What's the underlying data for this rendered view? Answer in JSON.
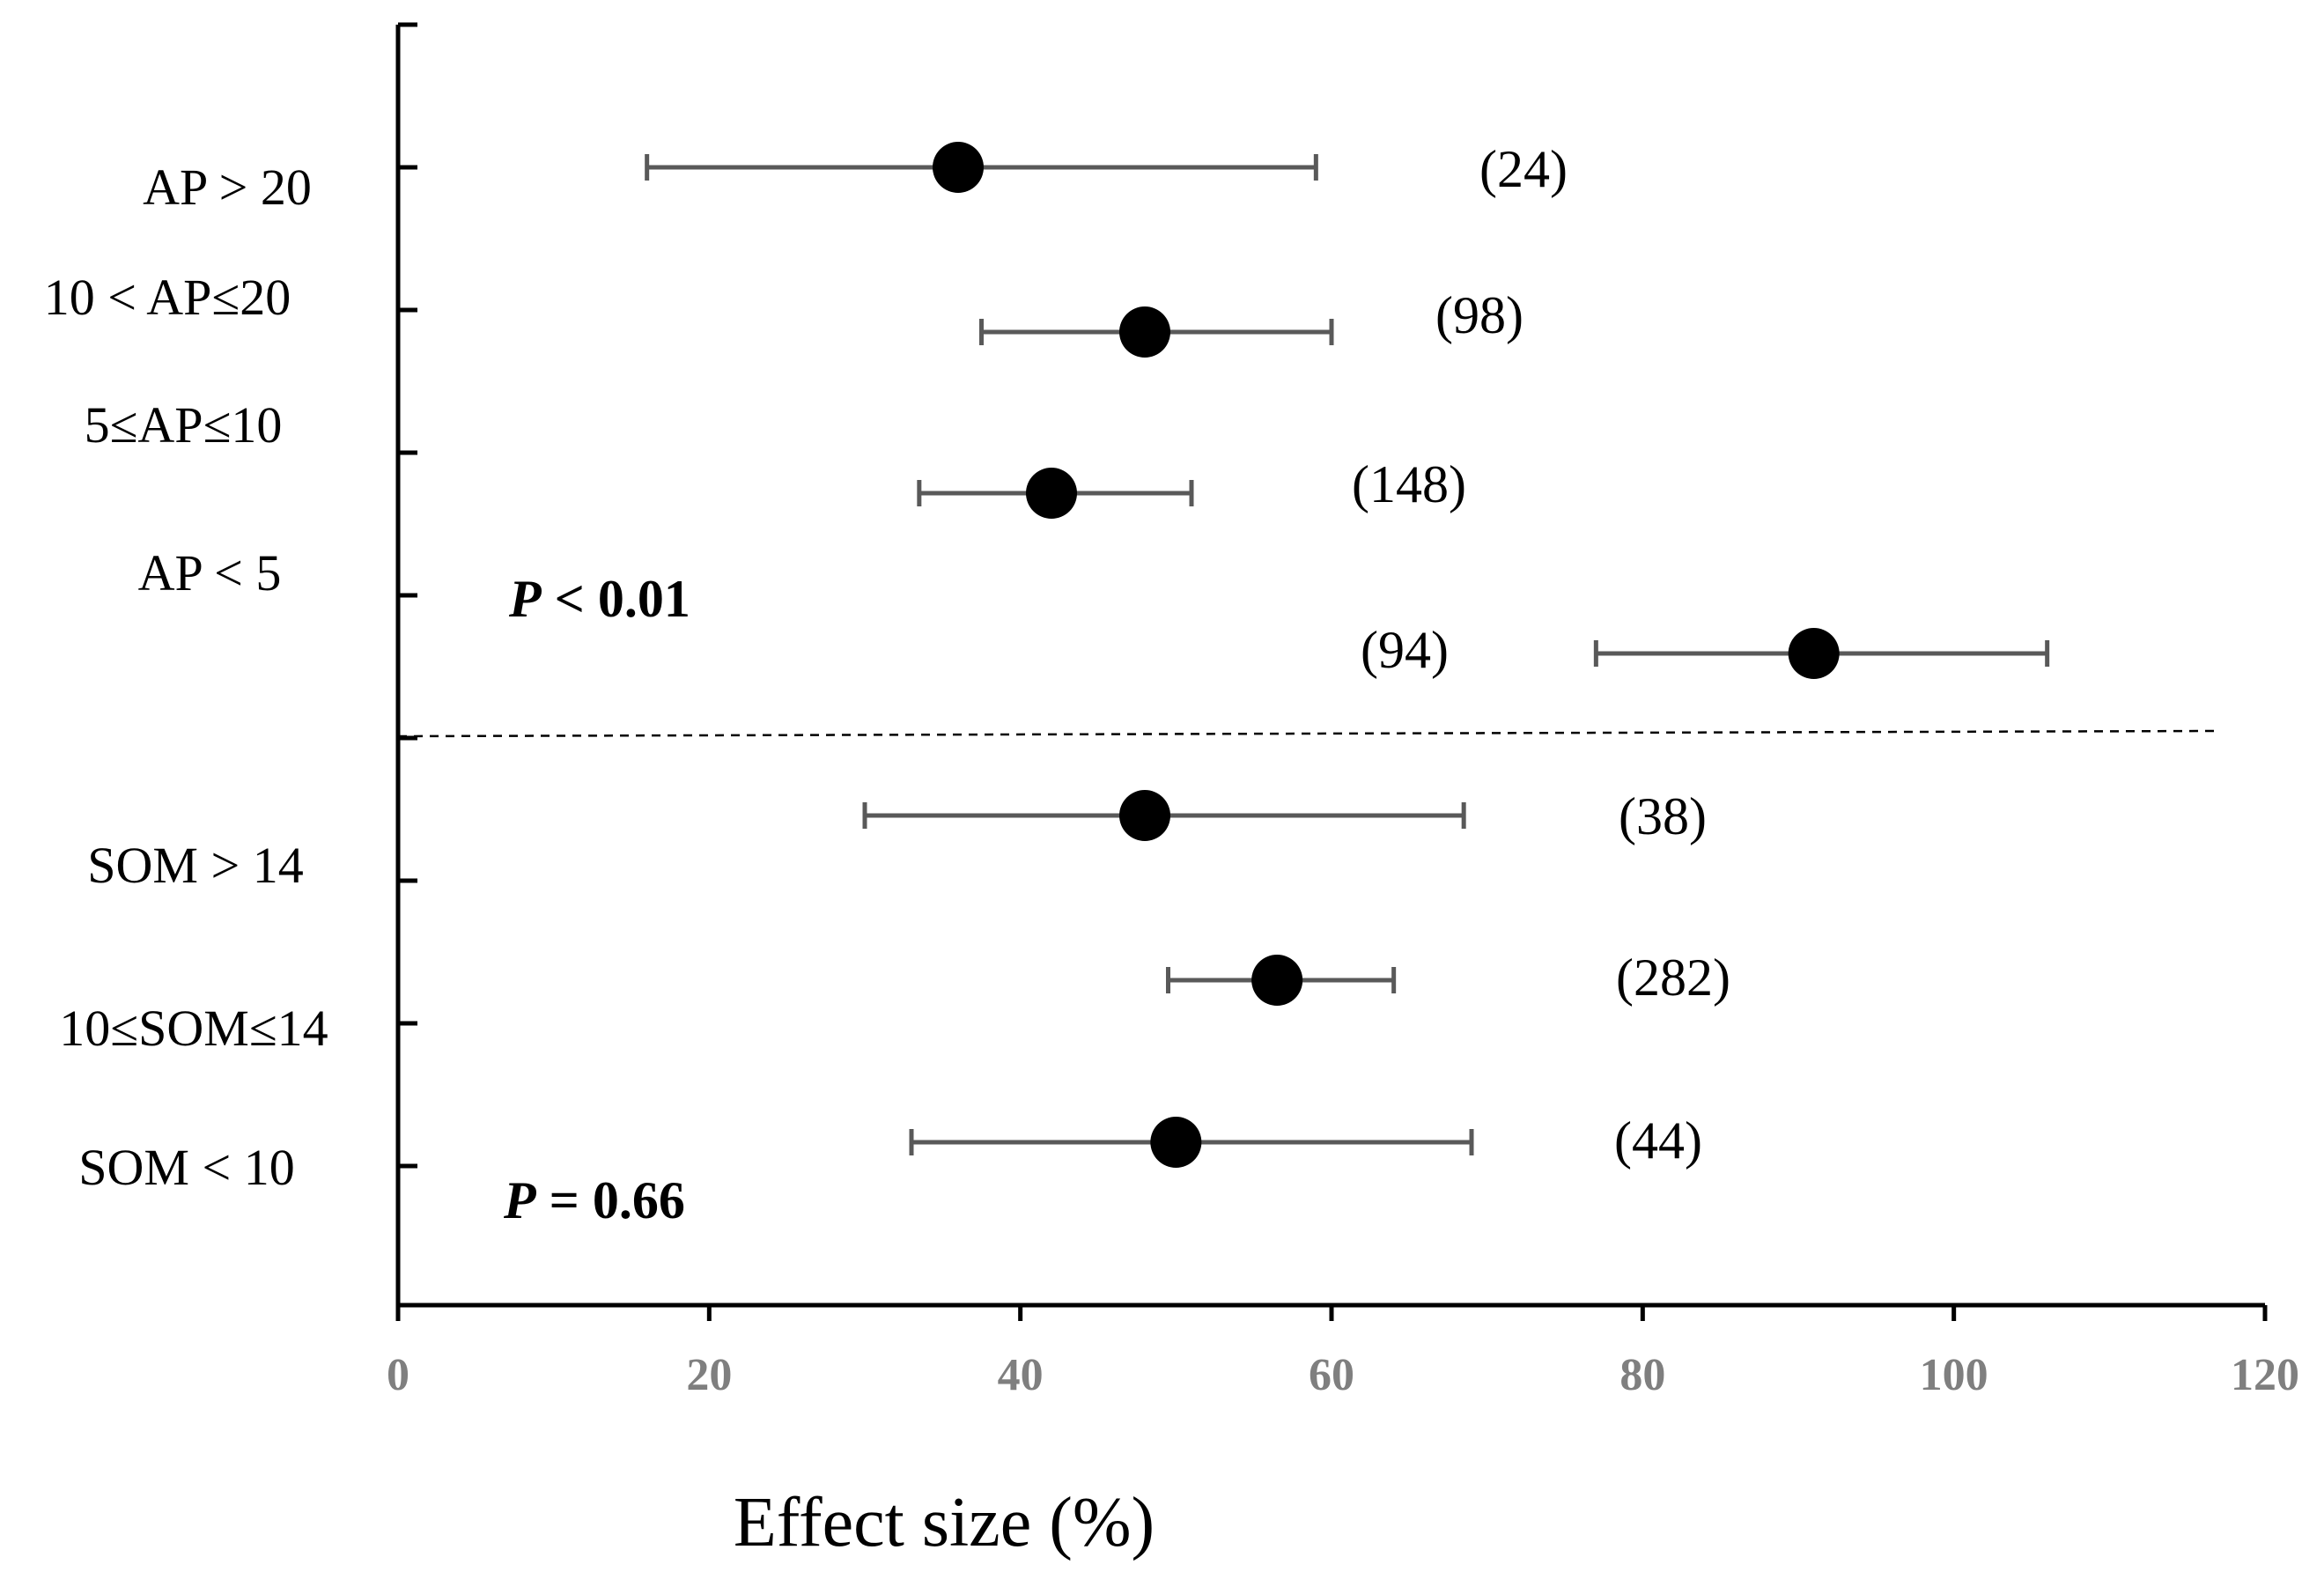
{
  "chart_data": {
    "type": "forest",
    "xlabel": "Effect size (%)",
    "xlim": [
      0,
      120
    ],
    "x_ticks": [
      0,
      20,
      40,
      60,
      80,
      100,
      120
    ],
    "x_tick_labels": [
      "0",
      "20",
      "40",
      "60",
      "80",
      "100",
      "120"
    ],
    "category_labels": [
      "AP > 20",
      "10 < AP≤20",
      "5≤AP≤10",
      "AP < 5",
      "SOM > 14",
      "10≤SOM≤14",
      "SOM < 10"
    ],
    "groups": [
      {
        "variable": "AP",
        "p_value_label": "P < 0.01",
        "p_italic": "P",
        "p_rest": " < 0.01"
      },
      {
        "variable": "SOM",
        "p_value_label": "P = 0.66",
        "p_italic": "P",
        "p_rest": " = 0.66"
      }
    ],
    "series": [
      {
        "group": "AP",
        "mean": 36,
        "ci_low": 16,
        "ci_high": 59,
        "n_label": "(24)"
      },
      {
        "group": "AP",
        "mean": 48,
        "ci_low": 37.5,
        "ci_high": 60,
        "n_label": "(98)"
      },
      {
        "group": "AP",
        "mean": 42,
        "ci_low": 33.5,
        "ci_high": 51,
        "n_label": "(148)"
      },
      {
        "group": "AP",
        "mean": 91,
        "ci_low": 77,
        "ci_high": 106,
        "n_label": "(94)"
      },
      {
        "group": "SOM",
        "mean": 48,
        "ci_low": 30,
        "ci_high": 68.5,
        "n_label": "(38)"
      },
      {
        "group": "SOM",
        "mean": 56.5,
        "ci_low": 49.5,
        "ci_high": 64,
        "n_label": "(282)"
      },
      {
        "group": "SOM",
        "mean": 50,
        "ci_low": 33,
        "ci_high": 69,
        "n_label": "(44)"
      }
    ]
  }
}
